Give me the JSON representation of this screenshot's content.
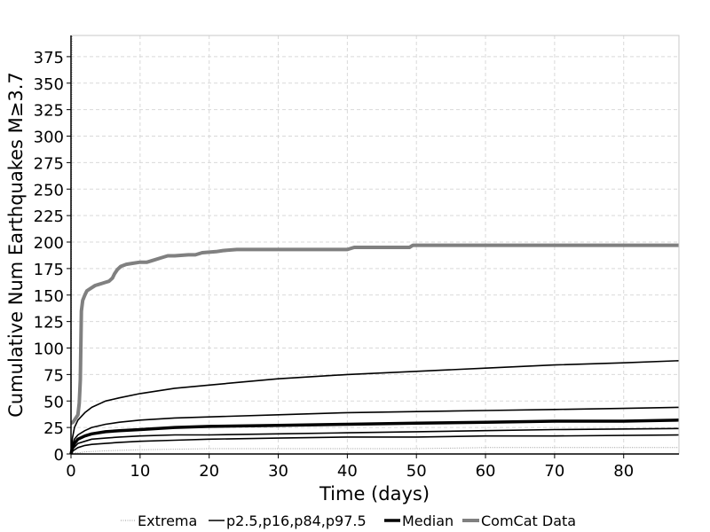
{
  "chart_data": {
    "type": "line",
    "title": "",
    "xlabel": "Time (days)",
    "ylabel": "Cumulative Num Earthquakes M≥3.7",
    "xlim": [
      0,
      88
    ],
    "ylim": [
      0,
      395
    ],
    "x_ticks": [
      0,
      10,
      20,
      30,
      40,
      50,
      60,
      70,
      80
    ],
    "y_ticks": [
      0,
      25,
      50,
      75,
      100,
      125,
      150,
      175,
      200,
      225,
      250,
      275,
      300,
      325,
      350,
      375
    ],
    "grid": true,
    "legend_position": "bottom",
    "legend": [
      {
        "label": "Extrema",
        "style": "dotted",
        "color": "#999999"
      },
      {
        "label": "p2.5,p16,p84,p97.5",
        "style": "thin",
        "color": "#000000"
      },
      {
        "label": "Median",
        "style": "thick",
        "color": "#000000"
      },
      {
        "label": "ComCat Data",
        "style": "thick",
        "color": "#808080"
      }
    ],
    "series": [
      {
        "name": "Extrema",
        "role": "extrema-low",
        "color": "#999999",
        "points": [
          [
            0,
            0
          ],
          [
            0.5,
            1
          ],
          [
            1,
            1
          ],
          [
            2,
            2
          ],
          [
            5,
            3
          ],
          [
            10,
            4
          ],
          [
            20,
            5
          ],
          [
            30,
            5
          ],
          [
            40,
            5
          ],
          [
            50,
            5
          ],
          [
            60,
            6
          ],
          [
            70,
            6
          ],
          [
            88,
            6
          ]
        ]
      },
      {
        "name": "Extrema",
        "role": "extrema-high",
        "color": "#999999",
        "points": [
          [
            0,
            0
          ],
          [
            0.05,
            150
          ],
          [
            0.1,
            300
          ],
          [
            0.15,
            395
          ]
        ]
      },
      {
        "name": "p2.5,p16,p84,p97.5",
        "role": "p97.5",
        "color": "#000000",
        "points": [
          [
            0,
            0
          ],
          [
            0.2,
            15
          ],
          [
            0.5,
            25
          ],
          [
            1,
            32
          ],
          [
            2,
            39
          ],
          [
            3,
            44
          ],
          [
            5,
            50
          ],
          [
            7,
            53
          ],
          [
            10,
            57
          ],
          [
            15,
            62
          ],
          [
            20,
            65
          ],
          [
            25,
            68
          ],
          [
            30,
            71
          ],
          [
            40,
            75
          ],
          [
            50,
            78
          ],
          [
            60,
            81
          ],
          [
            70,
            84
          ],
          [
            80,
            86
          ],
          [
            88,
            88
          ]
        ]
      },
      {
        "name": "p2.5,p16,p84,p97.5",
        "role": "p84",
        "color": "#000000",
        "points": [
          [
            0,
            0
          ],
          [
            0.2,
            8
          ],
          [
            0.5,
            14
          ],
          [
            1,
            18
          ],
          [
            2,
            22
          ],
          [
            3,
            25
          ],
          [
            5,
            28
          ],
          [
            7,
            30
          ],
          [
            10,
            32
          ],
          [
            15,
            34
          ],
          [
            20,
            35
          ],
          [
            30,
            37
          ],
          [
            40,
            39
          ],
          [
            50,
            40
          ],
          [
            60,
            41
          ],
          [
            70,
            42
          ],
          [
            80,
            43
          ],
          [
            88,
            44
          ]
        ]
      },
      {
        "name": "p2.5,p16,p84,p97.5",
        "role": "p16",
        "color": "#000000",
        "points": [
          [
            0,
            0
          ],
          [
            0.3,
            5
          ],
          [
            1,
            10
          ],
          [
            2,
            12
          ],
          [
            3,
            14
          ],
          [
            5,
            15
          ],
          [
            7,
            16
          ],
          [
            10,
            17
          ],
          [
            15,
            18
          ],
          [
            20,
            18
          ],
          [
            30,
            19
          ],
          [
            40,
            20
          ],
          [
            50,
            21
          ],
          [
            60,
            22
          ],
          [
            70,
            23
          ],
          [
            88,
            24
          ]
        ]
      },
      {
        "name": "p2.5,p16,p84,p97.5",
        "role": "p2.5",
        "color": "#000000",
        "points": [
          [
            0,
            0
          ],
          [
            0.3,
            3
          ],
          [
            1,
            6
          ],
          [
            2,
            8
          ],
          [
            3,
            9
          ],
          [
            5,
            10
          ],
          [
            7,
            11
          ],
          [
            10,
            12
          ],
          [
            15,
            13
          ],
          [
            20,
            14
          ],
          [
            30,
            15
          ],
          [
            40,
            16
          ],
          [
            50,
            16
          ],
          [
            60,
            17
          ],
          [
            70,
            17
          ],
          [
            88,
            18
          ]
        ]
      },
      {
        "name": "Median",
        "role": "median",
        "color": "#000000",
        "points": [
          [
            0,
            0
          ],
          [
            0.2,
            6
          ],
          [
            0.5,
            10
          ],
          [
            1,
            14
          ],
          [
            2,
            17
          ],
          [
            3,
            19
          ],
          [
            5,
            21
          ],
          [
            7,
            22
          ],
          [
            10,
            23
          ],
          [
            15,
            25
          ],
          [
            20,
            26
          ],
          [
            30,
            27
          ],
          [
            40,
            28
          ],
          [
            50,
            29
          ],
          [
            60,
            30
          ],
          [
            70,
            31
          ],
          [
            80,
            31
          ],
          [
            88,
            32
          ]
        ]
      },
      {
        "name": "ComCat Data",
        "role": "comcat",
        "color": "#808080",
        "points": [
          [
            0,
            29
          ],
          [
            0.3,
            30
          ],
          [
            0.6,
            33
          ],
          [
            1,
            37
          ],
          [
            1.2,
            48
          ],
          [
            1.35,
            70
          ],
          [
            1.5,
            135
          ],
          [
            1.7,
            145
          ],
          [
            2,
            150
          ],
          [
            2.3,
            154
          ],
          [
            3,
            157
          ],
          [
            3.5,
            159
          ],
          [
            4,
            160
          ],
          [
            4.5,
            161
          ],
          [
            5,
            162
          ],
          [
            5.5,
            163
          ],
          [
            6,
            166
          ],
          [
            6.3,
            170
          ],
          [
            6.7,
            174
          ],
          [
            7.2,
            177
          ],
          [
            8,
            179
          ],
          [
            9,
            180
          ],
          [
            10,
            181
          ],
          [
            11,
            181
          ],
          [
            12,
            183
          ],
          [
            13,
            185
          ],
          [
            14,
            187
          ],
          [
            15,
            187
          ],
          [
            17,
            188
          ],
          [
            18,
            188
          ],
          [
            19,
            190
          ],
          [
            21,
            191
          ],
          [
            22,
            192
          ],
          [
            24,
            193
          ],
          [
            30,
            193
          ],
          [
            35,
            193
          ],
          [
            40,
            193
          ],
          [
            41,
            195
          ],
          [
            45,
            195
          ],
          [
            49,
            195
          ],
          [
            49.5,
            197
          ],
          [
            60,
            197
          ],
          [
            70,
            197
          ],
          [
            88,
            197
          ]
        ]
      }
    ]
  }
}
